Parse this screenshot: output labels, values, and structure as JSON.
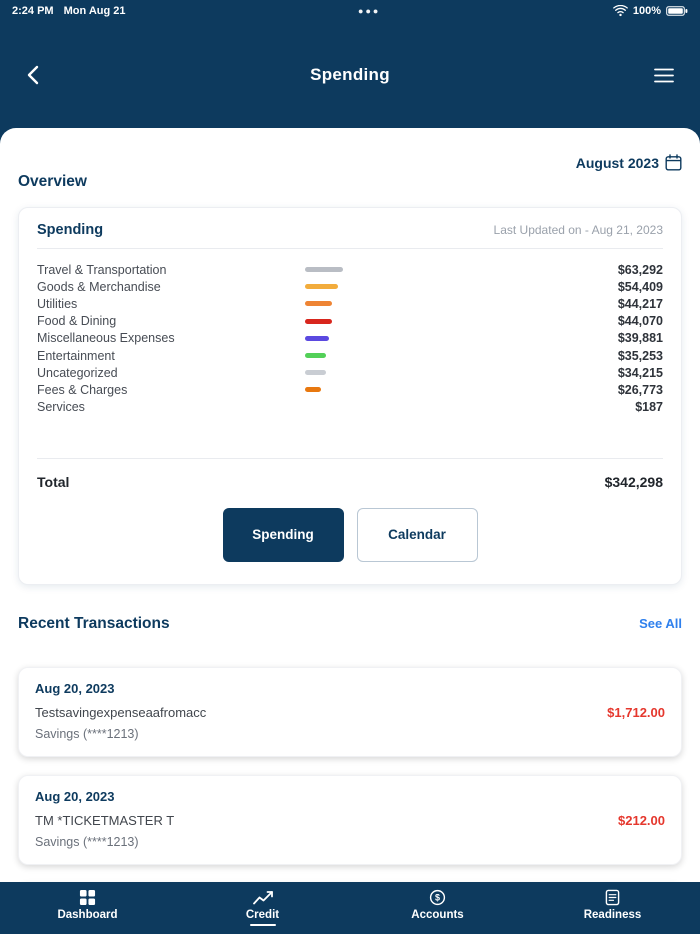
{
  "status_bar": {
    "time": "2:24 PM",
    "date": "Mon Aug 21",
    "battery_percent": "100%"
  },
  "header": {
    "title": "Spending"
  },
  "overview": {
    "heading": "Overview",
    "month_label": "August 2023"
  },
  "spending_card": {
    "title": "Spending",
    "last_updated": "Last Updated on - Aug 21, 2023",
    "total_label": "Total",
    "total_display": "$342,298",
    "spending_button": "Spending",
    "calendar_button": "Calendar"
  },
  "chart_data": {
    "type": "bar",
    "title": "Spending",
    "categories": [
      "Travel & Transportation",
      "Goods & Merchandise",
      "Utilities",
      "Food & Dining",
      "Miscellaneous Expenses",
      "Entertainment",
      "Uncategorized",
      "Fees & Charges",
      "Services"
    ],
    "values": [
      63292,
      54409,
      44217,
      44070,
      39881,
      35253,
      34215,
      26773,
      187
    ],
    "display_values": [
      "$63,292",
      "$54,409",
      "$44,217",
      "$44,070",
      "$39,881",
      "$35,253",
      "$34,215",
      "$26,773",
      "$187"
    ],
    "colors": [
      "#b9bdc4",
      "#f2ac3c",
      "#ee8434",
      "#d8261d",
      "#5b49e0",
      "#53d058",
      "#c9cdd3",
      "#e8780f",
      "#c9cdd3"
    ],
    "total": 342298,
    "total_display": "$342,298"
  },
  "recent_transactions": {
    "heading": "Recent Transactions",
    "see_all": "See All",
    "items": [
      {
        "date": "Aug 20, 2023",
        "description": "Testsavingexpenseaafromacc",
        "account": "Savings (****1213)",
        "amount": "$1,712.00"
      },
      {
        "date": "Aug 20, 2023",
        "description": "TM *TICKETMASTER T",
        "account": "Savings (****1213)",
        "amount": "$212.00"
      }
    ]
  },
  "bottom_nav": {
    "items": [
      {
        "label": "Dashboard",
        "icon": "dashboard-grid-icon",
        "active": false
      },
      {
        "label": "Credit",
        "icon": "credit-chart-icon",
        "active": true
      },
      {
        "label": "Accounts",
        "icon": "accounts-dollar-icon",
        "active": false
      },
      {
        "label": "Readiness",
        "icon": "readiness-report-icon",
        "active": false
      }
    ]
  },
  "colors": {
    "navy": "#0d3a5e",
    "amount_red": "#e5372d",
    "link_blue": "#2f80ed"
  }
}
